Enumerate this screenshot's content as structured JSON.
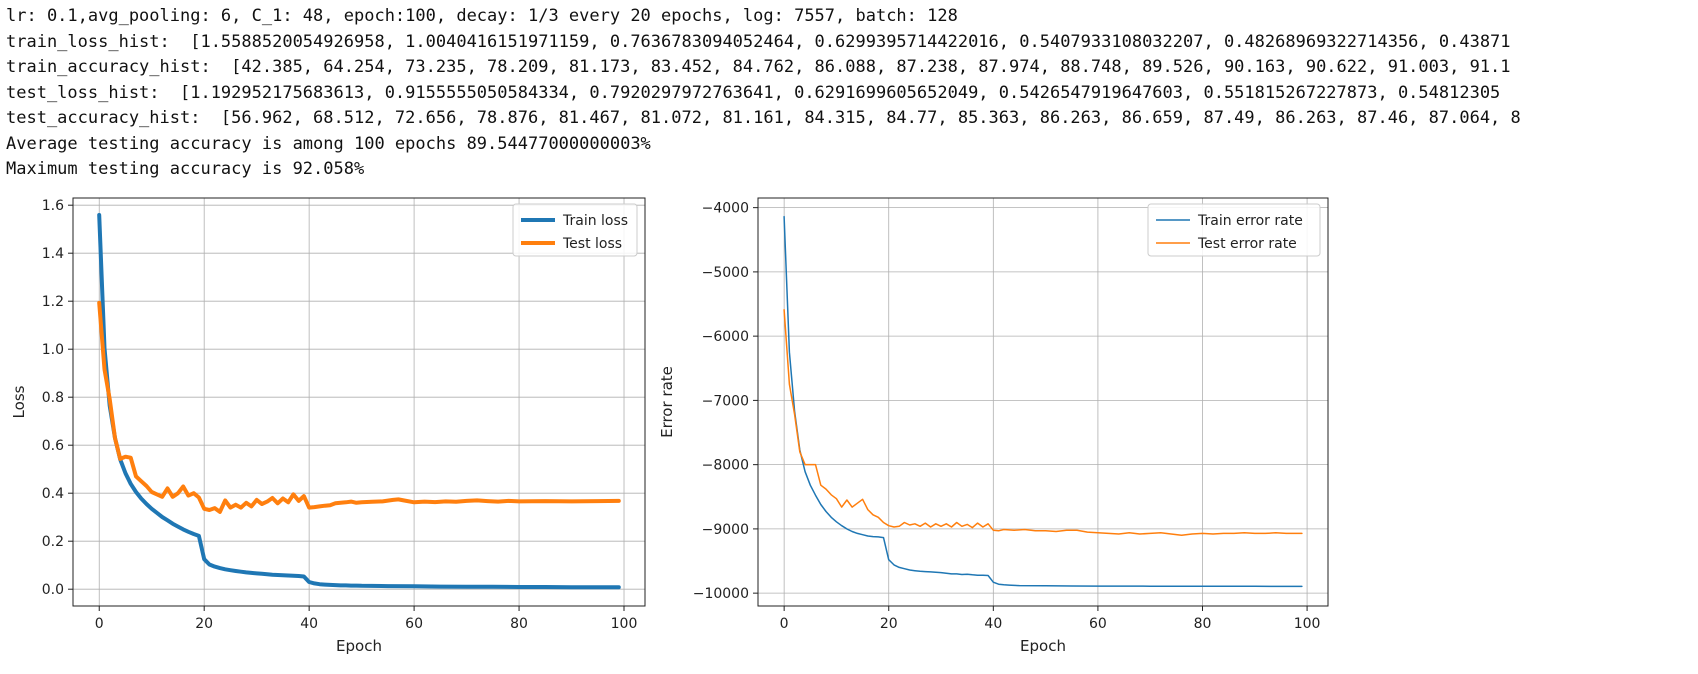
{
  "output_lines": [
    "lr: 0.1,avg_pooling: 6, C_1: 48, epoch:100, decay: 1/3 every 20 epochs, log: 7557, batch: 128",
    "train_loss_hist:  [1.5588520054926958, 1.0040416151971159, 0.7636783094052464, 0.6299395714422016, 0.5407933108032207, 0.48268969322714356, 0.43871",
    "train_accuracy_hist:  [42.385, 64.254, 73.235, 78.209, 81.173, 83.452, 84.762, 86.088, 87.238, 87.974, 88.748, 89.526, 90.163, 90.622, 91.003, 91.1",
    "test_loss_hist:  [1.192952175683613, 0.9155555050584334, 0.7920297972763641, 0.6291699605652049, 0.5426547919647603, 0.551815267227873, 0.54812305",
    "test_accuracy_hist:  [56.962, 68.512, 72.656, 78.876, 81.467, 81.072, 81.161, 84.315, 84.77, 85.363, 86.263, 86.659, 87.49, 86.263, 87.46, 87.064, 8",
    "Average testing accuracy is among 100 epochs 89.54477000000003%",
    "Maximum testing accuracy is 92.058%"
  ],
  "chart_data": [
    {
      "type": "line",
      "xlabel": "Epoch",
      "ylabel": "Loss",
      "xlim": [
        -5,
        104
      ],
      "ylim": [
        -0.07,
        1.63
      ],
      "xticks": [
        0,
        20,
        40,
        60,
        80,
        100
      ],
      "yticks": [
        0.0,
        0.2,
        0.4,
        0.6,
        0.8,
        1.0,
        1.2,
        1.4,
        1.6
      ],
      "ytick_labels": [
        "0.0",
        "0.2",
        "0.4",
        "0.6",
        "0.8",
        "1.0",
        "1.2",
        "1.4",
        "1.6"
      ],
      "grid": true,
      "legend_position": "top-right",
      "line_width": 4,
      "series": [
        {
          "name": "Train loss",
          "color": "#1f77b4",
          "points": [
            [
              0,
              1.559
            ],
            [
              1,
              1.004
            ],
            [
              2,
              0.764
            ],
            [
              3,
              0.63
            ],
            [
              4,
              0.541
            ],
            [
              5,
              0.483
            ],
            [
              6,
              0.439
            ],
            [
              7,
              0.405
            ],
            [
              8,
              0.378
            ],
            [
              9,
              0.355
            ],
            [
              10,
              0.335
            ],
            [
              11,
              0.318
            ],
            [
              12,
              0.301
            ],
            [
              13,
              0.287
            ],
            [
              14,
              0.273
            ],
            [
              15,
              0.261
            ],
            [
              16,
              0.249
            ],
            [
              17,
              0.239
            ],
            [
              18,
              0.23
            ],
            [
              19,
              0.222
            ],
            [
              20,
              0.125
            ],
            [
              21,
              0.103
            ],
            [
              22,
              0.094
            ],
            [
              23,
              0.088
            ],
            [
              24,
              0.083
            ],
            [
              25,
              0.079
            ],
            [
              26,
              0.076
            ],
            [
              27,
              0.073
            ],
            [
              28,
              0.07
            ],
            [
              29,
              0.068
            ],
            [
              30,
              0.066
            ],
            [
              31,
              0.064
            ],
            [
              32,
              0.062
            ],
            [
              33,
              0.06
            ],
            [
              34,
              0.059
            ],
            [
              35,
              0.058
            ],
            [
              36,
              0.057
            ],
            [
              37,
              0.056
            ],
            [
              38,
              0.055
            ],
            [
              39,
              0.053
            ],
            [
              40,
              0.03
            ],
            [
              41,
              0.024
            ],
            [
              42,
              0.021
            ],
            [
              43,
              0.019
            ],
            [
              44,
              0.018
            ],
            [
              45,
              0.017
            ],
            [
              46,
              0.016
            ],
            [
              47,
              0.016
            ],
            [
              48,
              0.015
            ],
            [
              49,
              0.015
            ],
            [
              50,
              0.014
            ],
            [
              55,
              0.013
            ],
            [
              60,
              0.012
            ],
            [
              65,
              0.011
            ],
            [
              70,
              0.01
            ],
            [
              75,
              0.01
            ],
            [
              80,
              0.009
            ],
            [
              85,
              0.009
            ],
            [
              90,
              0.008
            ],
            [
              95,
              0.008
            ],
            [
              99,
              0.008
            ]
          ]
        },
        {
          "name": "Test loss",
          "color": "#ff7f0e",
          "points": [
            [
              0,
              1.193
            ],
            [
              1,
              0.916
            ],
            [
              2,
              0.792
            ],
            [
              3,
              0.629
            ],
            [
              4,
              0.543
            ],
            [
              5,
              0.552
            ],
            [
              6,
              0.548
            ],
            [
              7,
              0.47
            ],
            [
              8,
              0.45
            ],
            [
              9,
              0.43
            ],
            [
              10,
              0.405
            ],
            [
              11,
              0.395
            ],
            [
              12,
              0.385
            ],
            [
              13,
              0.42
            ],
            [
              14,
              0.385
            ],
            [
              15,
              0.4
            ],
            [
              16,
              0.428
            ],
            [
              17,
              0.39
            ],
            [
              18,
              0.4
            ],
            [
              19,
              0.382
            ],
            [
              20,
              0.335
            ],
            [
              21,
              0.33
            ],
            [
              22,
              0.338
            ],
            [
              23,
              0.322
            ],
            [
              24,
              0.37
            ],
            [
              25,
              0.34
            ],
            [
              26,
              0.352
            ],
            [
              27,
              0.34
            ],
            [
              28,
              0.36
            ],
            [
              29,
              0.345
            ],
            [
              30,
              0.372
            ],
            [
              31,
              0.355
            ],
            [
              32,
              0.365
            ],
            [
              33,
              0.38
            ],
            [
              34,
              0.358
            ],
            [
              35,
              0.378
            ],
            [
              36,
              0.362
            ],
            [
              37,
              0.395
            ],
            [
              38,
              0.368
            ],
            [
              39,
              0.388
            ],
            [
              40,
              0.34
            ],
            [
              41,
              0.342
            ],
            [
              42,
              0.345
            ],
            [
              43,
              0.348
            ],
            [
              44,
              0.35
            ],
            [
              45,
              0.358
            ],
            [
              46,
              0.36
            ],
            [
              47,
              0.362
            ],
            [
              48,
              0.365
            ],
            [
              49,
              0.36
            ],
            [
              50,
              0.362
            ],
            [
              52,
              0.364
            ],
            [
              54,
              0.366
            ],
            [
              56,
              0.372
            ],
            [
              57,
              0.374
            ],
            [
              58,
              0.37
            ],
            [
              60,
              0.362
            ],
            [
              62,
              0.365
            ],
            [
              64,
              0.363
            ],
            [
              66,
              0.366
            ],
            [
              68,
              0.364
            ],
            [
              70,
              0.368
            ],
            [
              72,
              0.37
            ],
            [
              74,
              0.367
            ],
            [
              76,
              0.365
            ],
            [
              78,
              0.368
            ],
            [
              80,
              0.366
            ],
            [
              85,
              0.367
            ],
            [
              90,
              0.366
            ],
            [
              95,
              0.367
            ],
            [
              99,
              0.368
            ]
          ]
        }
      ]
    },
    {
      "type": "line",
      "xlabel": "Epoch",
      "ylabel": "Error rate",
      "xlim": [
        -5,
        104
      ],
      "ylim": [
        -10200,
        -3850
      ],
      "xticks": [
        0,
        20,
        40,
        60,
        80,
        100
      ],
      "yticks": [
        -10000,
        -9000,
        -8000,
        -7000,
        -6000,
        -5000,
        -4000
      ],
      "ytick_labels": [
        "−10000",
        "−9000",
        "−8000",
        "−7000",
        "−6000",
        "−5000",
        "−4000"
      ],
      "grid": true,
      "legend_position": "top-right",
      "line_width": 1.5,
      "series": [
        {
          "name": "Train error rate",
          "color": "#1f77b4",
          "points": [
            [
              0,
              -4140
            ],
            [
              1,
              -6250
            ],
            [
              2,
              -7170
            ],
            [
              3,
              -7770
            ],
            [
              4,
              -8110
            ],
            [
              5,
              -8320
            ],
            [
              6,
              -8475
            ],
            [
              7,
              -8620
            ],
            [
              8,
              -8730
            ],
            [
              9,
              -8820
            ],
            [
              10,
              -8890
            ],
            [
              11,
              -8950
            ],
            [
              12,
              -9000
            ],
            [
              13,
              -9040
            ],
            [
              14,
              -9070
            ],
            [
              15,
              -9090
            ],
            [
              16,
              -9110
            ],
            [
              17,
              -9120
            ],
            [
              18,
              -9125
            ],
            [
              19,
              -9135
            ],
            [
              20,
              -9480
            ],
            [
              21,
              -9560
            ],
            [
              22,
              -9600
            ],
            [
              23,
              -9620
            ],
            [
              24,
              -9640
            ],
            [
              25,
              -9650
            ],
            [
              26,
              -9660
            ],
            [
              27,
              -9665
            ],
            [
              28,
              -9670
            ],
            [
              29,
              -9675
            ],
            [
              30,
              -9680
            ],
            [
              31,
              -9690
            ],
            [
              32,
              -9700
            ],
            [
              33,
              -9700
            ],
            [
              34,
              -9710
            ],
            [
              35,
              -9705
            ],
            [
              36,
              -9715
            ],
            [
              37,
              -9720
            ],
            [
              38,
              -9720
            ],
            [
              39,
              -9725
            ],
            [
              40,
              -9830
            ],
            [
              41,
              -9860
            ],
            [
              42,
              -9870
            ],
            [
              43,
              -9875
            ],
            [
              44,
              -9880
            ],
            [
              45,
              -9882
            ],
            [
              50,
              -9886
            ],
            [
              55,
              -9888
            ],
            [
              60,
              -9890
            ],
            [
              65,
              -9891
            ],
            [
              70,
              -9892
            ],
            [
              80,
              -9893
            ],
            [
              90,
              -9894
            ],
            [
              99,
              -9895
            ]
          ]
        },
        {
          "name": "Test error rate",
          "color": "#ff7f0e",
          "points": [
            [
              0,
              -5590
            ],
            [
              1,
              -6750
            ],
            [
              2,
              -7220
            ],
            [
              3,
              -7800
            ],
            [
              4,
              -8000
            ],
            [
              5,
              -8000
            ],
            [
              6,
              -8000
            ],
            [
              7,
              -8320
            ],
            [
              8,
              -8380
            ],
            [
              9,
              -8470
            ],
            [
              10,
              -8530
            ],
            [
              11,
              -8660
            ],
            [
              12,
              -8550
            ],
            [
              13,
              -8660
            ],
            [
              14,
              -8600
            ],
            [
              15,
              -8540
            ],
            [
              16,
              -8700
            ],
            [
              17,
              -8780
            ],
            [
              18,
              -8820
            ],
            [
              19,
              -8900
            ],
            [
              20,
              -8950
            ],
            [
              21,
              -8970
            ],
            [
              22,
              -8960
            ],
            [
              23,
              -8900
            ],
            [
              24,
              -8940
            ],
            [
              25,
              -8920
            ],
            [
              26,
              -8960
            ],
            [
              27,
              -8910
            ],
            [
              28,
              -8970
            ],
            [
              29,
              -8920
            ],
            [
              30,
              -8960
            ],
            [
              31,
              -8920
            ],
            [
              32,
              -8970
            ],
            [
              33,
              -8900
            ],
            [
              34,
              -8960
            ],
            [
              35,
              -8930
            ],
            [
              36,
              -8980
            ],
            [
              37,
              -8910
            ],
            [
              38,
              -8970
            ],
            [
              39,
              -8920
            ],
            [
              40,
              -9020
            ],
            [
              41,
              -9030
            ],
            [
              42,
              -9010
            ],
            [
              44,
              -9020
            ],
            [
              46,
              -9010
            ],
            [
              48,
              -9030
            ],
            [
              50,
              -9030
            ],
            [
              52,
              -9040
            ],
            [
              54,
              -9020
            ],
            [
              56,
              -9020
            ],
            [
              58,
              -9050
            ],
            [
              60,
              -9060
            ],
            [
              62,
              -9070
            ],
            [
              64,
              -9080
            ],
            [
              66,
              -9060
            ],
            [
              68,
              -9080
            ],
            [
              70,
              -9070
            ],
            [
              72,
              -9060
            ],
            [
              74,
              -9080
            ],
            [
              76,
              -9100
            ],
            [
              78,
              -9080
            ],
            [
              80,
              -9070
            ],
            [
              82,
              -9080
            ],
            [
              84,
              -9070
            ],
            [
              86,
              -9070
            ],
            [
              88,
              -9060
            ],
            [
              90,
              -9070
            ],
            [
              92,
              -9070
            ],
            [
              94,
              -9060
            ],
            [
              96,
              -9070
            ],
            [
              98,
              -9070
            ],
            [
              99,
              -9070
            ]
          ]
        }
      ]
    }
  ]
}
